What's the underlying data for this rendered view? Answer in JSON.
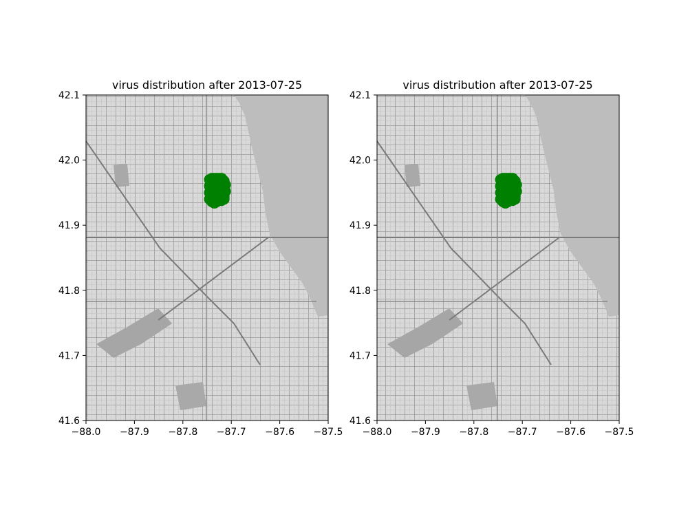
{
  "chart_data": [
    {
      "type": "scatter",
      "title": "virus distribution after 2013-07-25",
      "xlabel": "",
      "ylabel": "",
      "xlim": [
        -88.0,
        -87.5
      ],
      "ylim": [
        41.6,
        42.1
      ],
      "x_ticks": [
        "−88.0",
        "−87.9",
        "−87.8",
        "−87.7",
        "−87.6",
        "−87.5"
      ],
      "y_ticks": [
        "41.6",
        "41.7",
        "41.8",
        "41.9",
        "42.0",
        "42.1"
      ],
      "grid": false,
      "background": "grayscale street map",
      "marker_color": "#008000",
      "series": [
        {
          "x": [
            -87.745,
            -87.74,
            -87.735,
            -87.73,
            -87.725,
            -87.72,
            -87.715,
            -87.712,
            -87.745,
            -87.74,
            -87.735,
            -87.73,
            -87.725,
            -87.72,
            -87.715,
            -87.712,
            -87.745,
            -87.74,
            -87.735,
            -87.73,
            -87.725,
            -87.72,
            -87.715,
            -87.745,
            -87.74,
            -87.735,
            -87.73,
            -87.725,
            -87.72,
            -87.715
          ],
          "y": [
            41.97,
            41.972,
            41.972,
            41.972,
            41.972,
            41.972,
            41.968,
            41.962,
            41.96,
            41.962,
            41.962,
            41.96,
            41.96,
            41.958,
            41.956,
            41.952,
            41.95,
            41.948,
            41.95,
            41.95,
            41.948,
            41.946,
            41.944,
            41.94,
            41.936,
            41.934,
            41.936,
            41.938,
            41.938,
            41.94
          ]
        }
      ]
    },
    {
      "type": "scatter",
      "title": "virus distribution after 2013-07-25",
      "xlabel": "",
      "ylabel": "",
      "xlim": [
        -88.0,
        -87.5
      ],
      "ylim": [
        41.6,
        42.1
      ],
      "x_ticks": [
        "−88.0",
        "−87.9",
        "−87.8",
        "−87.7",
        "−87.6",
        "−87.5"
      ],
      "y_ticks": [
        "41.6",
        "41.7",
        "41.8",
        "41.9",
        "42.0",
        "42.1"
      ],
      "grid": false,
      "background": "grayscale street map",
      "marker_color": "#008000",
      "series": [
        {
          "x": [
            -87.745,
            -87.74,
            -87.735,
            -87.73,
            -87.725,
            -87.72,
            -87.715,
            -87.712,
            -87.745,
            -87.74,
            -87.735,
            -87.73,
            -87.725,
            -87.72,
            -87.715,
            -87.712,
            -87.745,
            -87.74,
            -87.735,
            -87.73,
            -87.725,
            -87.72,
            -87.715,
            -87.745,
            -87.74,
            -87.735,
            -87.73,
            -87.725,
            -87.72,
            -87.715
          ],
          "y": [
            41.97,
            41.972,
            41.972,
            41.972,
            41.972,
            41.972,
            41.968,
            41.962,
            41.96,
            41.962,
            41.962,
            41.96,
            41.96,
            41.958,
            41.956,
            41.952,
            41.95,
            41.948,
            41.95,
            41.95,
            41.948,
            41.946,
            41.944,
            41.94,
            41.936,
            41.934,
            41.936,
            41.938,
            41.938,
            41.94
          ]
        }
      ]
    }
  ]
}
